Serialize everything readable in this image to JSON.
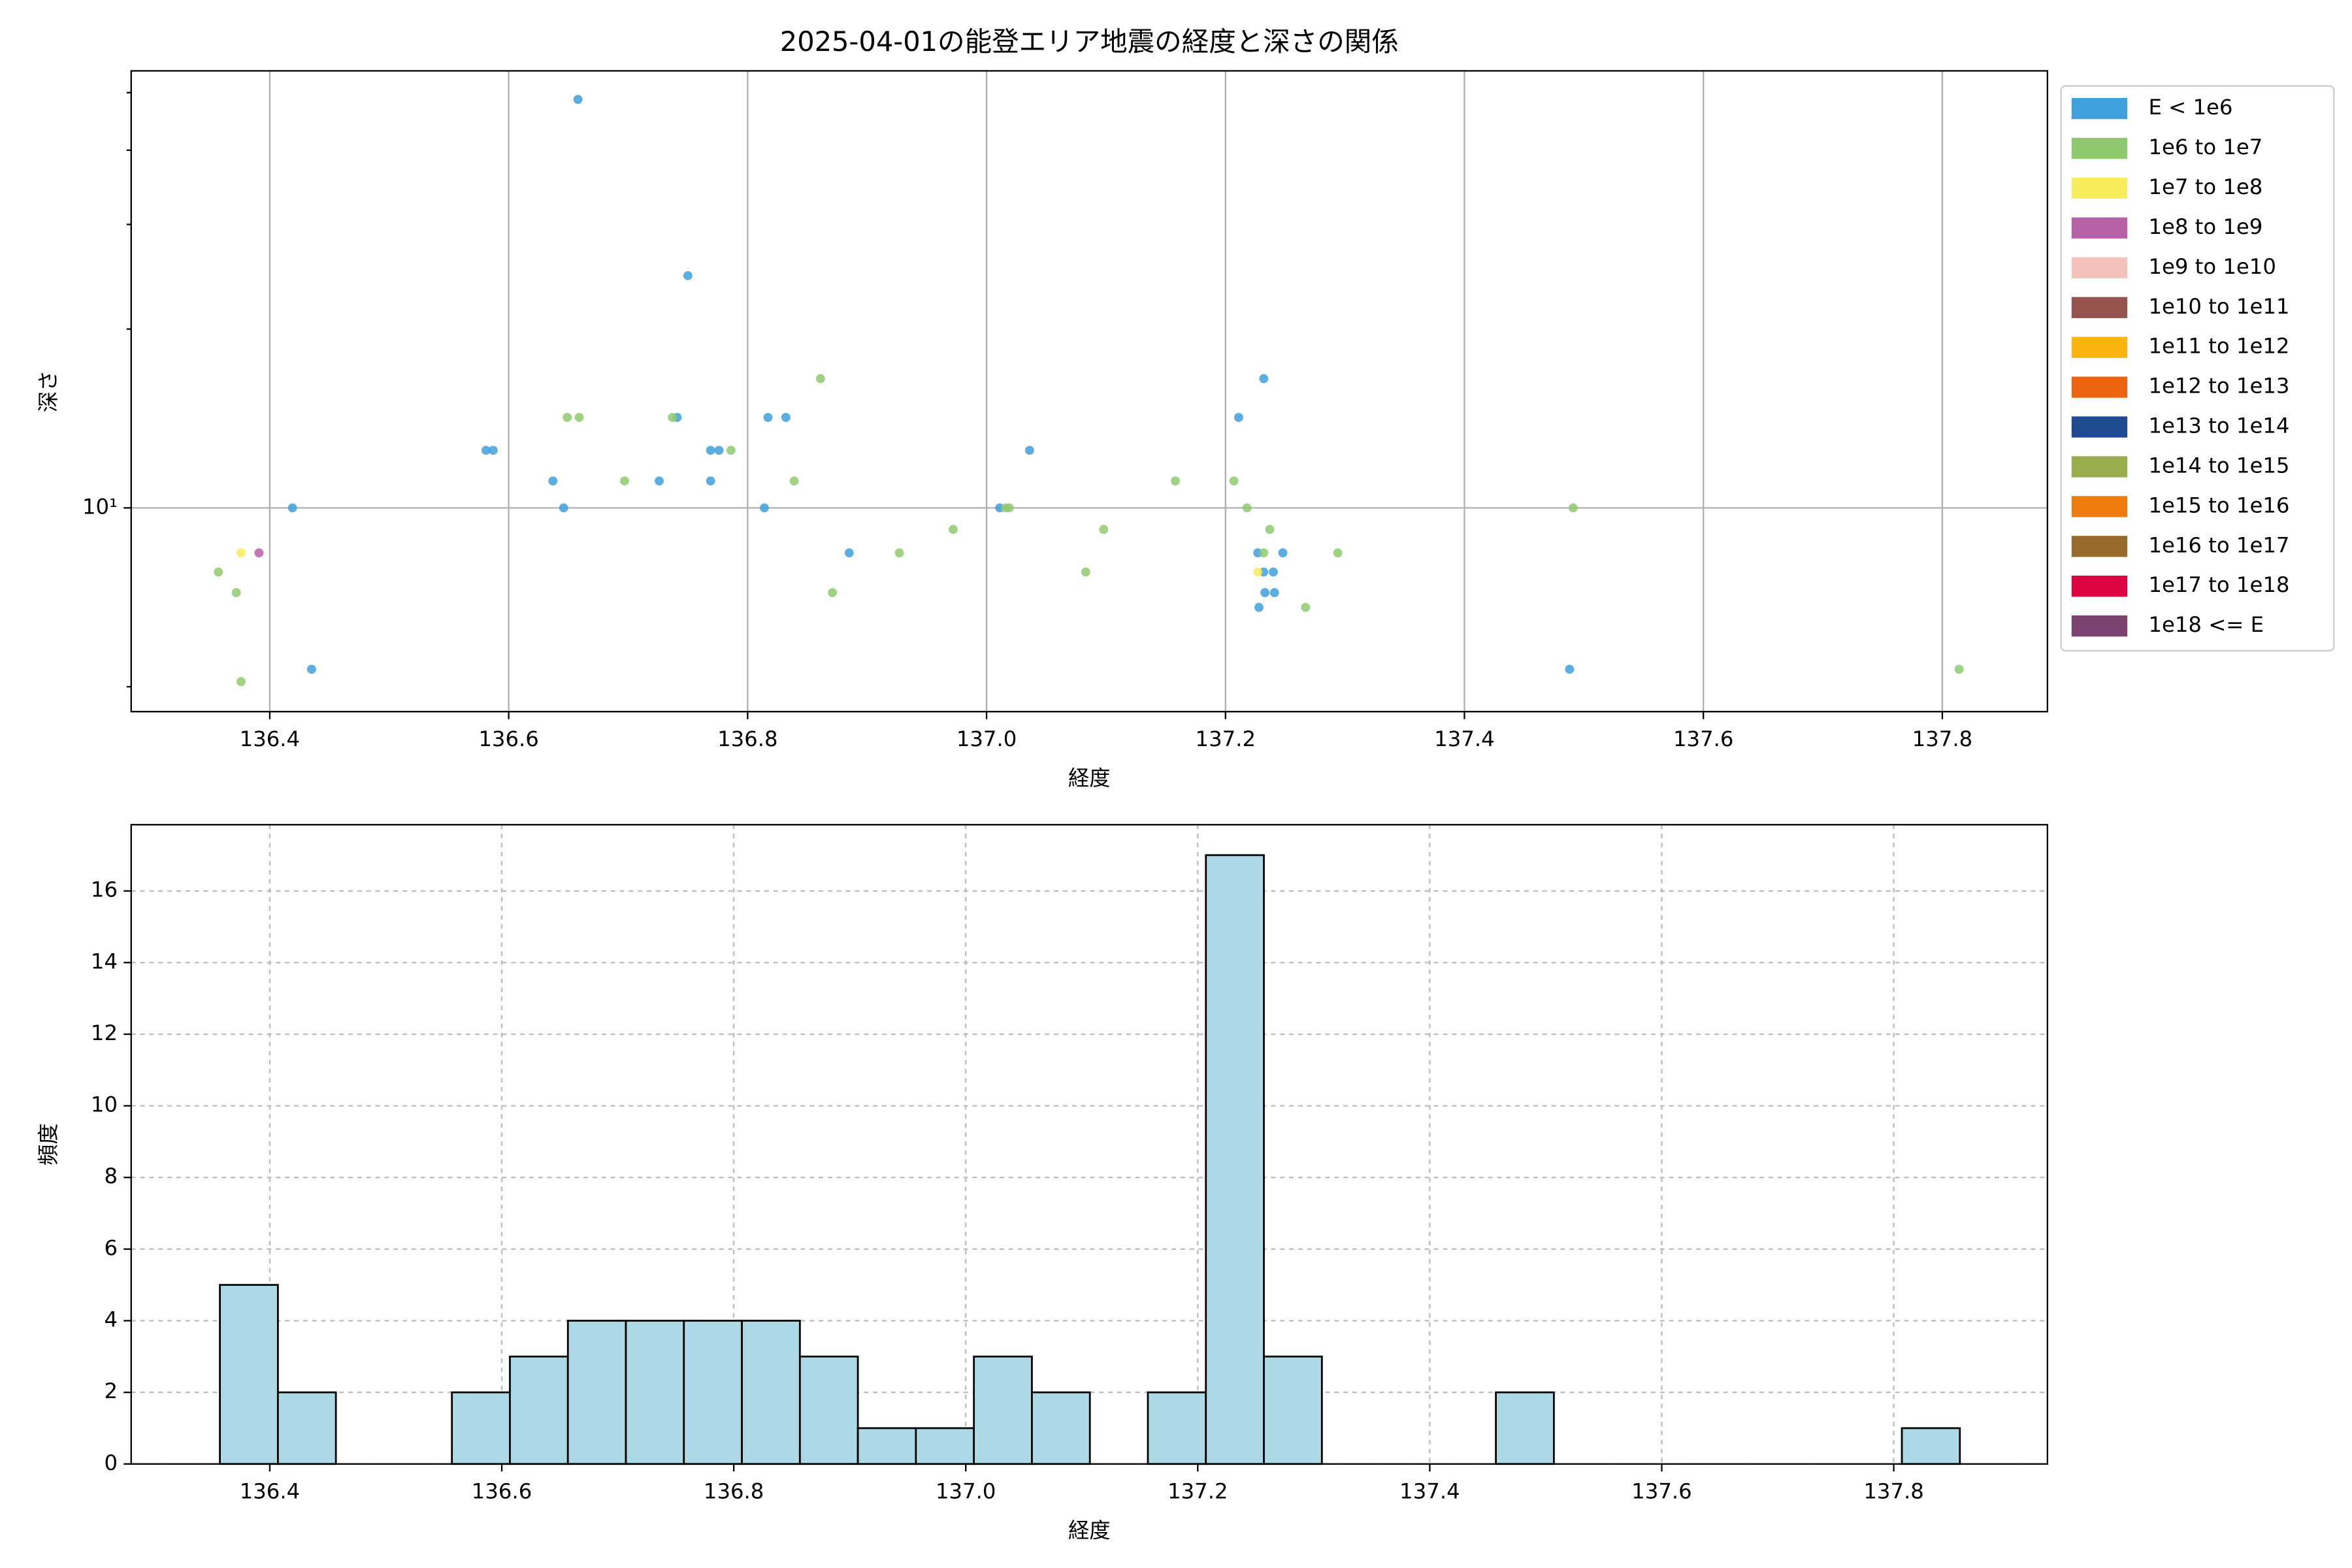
{
  "chart_data": [
    {
      "type": "scatter",
      "title": "2025-04-01の能登エリア地震の経度と深さの関係",
      "x_label": "経度",
      "y_label": "深さ",
      "xlim": [
        136.284,
        137.888
      ],
      "ylim": [
        4.54,
        54.4
      ],
      "y_scale": "log",
      "xticks": [
        136.4,
        136.6,
        136.8,
        {
          "value": 137,
          "label": "137.0"
        },
        137.2,
        137.4,
        137.6,
        137.8
      ],
      "yticks": [
        {
          "value": 10,
          "label": "10¹"
        }
      ],
      "yminorticks": [
        5,
        20,
        30,
        40,
        50
      ],
      "grid": true,
      "grid_style": "solid",
      "legend": "outside right",
      "series": [
        {
          "name": "E < 1e6",
          "color": "#3fa0dc",
          "x": [
            136.658,
            136.75,
            137.232,
            137.211,
            136.817,
            136.832,
            136.741,
            136.581,
            136.587,
            136.769,
            136.776,
            137.036,
            136.637,
            136.726,
            136.769,
            136.419,
            136.646,
            136.814,
            137.011,
            136.885,
            137.227,
            137.248,
            137.232,
            137.24,
            137.233,
            137.241,
            137.228,
            136.435,
            137.488
          ],
          "values": [
            48.7,
            24.6,
            16.5,
            14.2,
            14.2,
            14.2,
            14.2,
            12.5,
            12.5,
            12.5,
            12.5,
            12.5,
            11.1,
            11.1,
            11.1,
            10,
            10,
            10,
            10,
            8.4,
            8.4,
            8.4,
            7.8,
            7.8,
            7.2,
            7.2,
            6.8,
            5.35,
            5.35
          ]
        },
        {
          "name": "1e6 to 1e7",
          "color": "#8fc96f",
          "x": [
            136.861,
            136.649,
            136.659,
            136.737,
            136.786,
            136.697,
            136.839,
            137.158,
            137.207,
            137.016,
            137.019,
            137.218,
            137.491,
            136.972,
            137.098,
            137.237,
            136.927,
            137.294,
            137.232,
            136.357,
            137.083,
            136.372,
            136.871,
            137.267,
            137.814,
            136.376
          ],
          "values": [
            16.5,
            14.2,
            14.2,
            14.2,
            12.5,
            11.1,
            11.1,
            11.1,
            11.1,
            10,
            10,
            10,
            10,
            9.2,
            9.2,
            9.2,
            8.4,
            8.4,
            8.4,
            7.8,
            7.8,
            7.2,
            7.2,
            6.8,
            5.35,
            5.1
          ]
        },
        {
          "name": "1e7 to 1e8",
          "color": "#f9ec5c",
          "x": [
            136.376,
            137.227
          ],
          "values": [
            8.4,
            7.8
          ]
        },
        {
          "name": "1e8 to 1e9",
          "color": "#b762a6",
          "x": [
            136.391
          ],
          "values": [
            8.4
          ]
        },
        {
          "name": "1e9 to 1e10",
          "color": "#f4c2bb",
          "x": [],
          "values": []
        },
        {
          "name": "1e10 to 1e11",
          "color": "#96534d",
          "x": [],
          "values": []
        },
        {
          "name": "1e11 to 1e12",
          "color": "#f9b40e",
          "x": [],
          "values": []
        },
        {
          "name": "1e12 to 1e13",
          "color": "#ed6410",
          "x": [],
          "values": []
        },
        {
          "name": "1e13 to 1e14",
          "color": "#1f4a8f",
          "x": [],
          "values": []
        },
        {
          "name": "1e14 to 1e15",
          "color": "#9aad4c",
          "x": [],
          "values": []
        },
        {
          "name": "1e15 to 1e16",
          "color": "#ee7c0e",
          "x": [],
          "values": []
        },
        {
          "name": "1e16 to 1e17",
          "color": "#966b2c",
          "x": [],
          "values": []
        },
        {
          "name": "1e17 to 1e18",
          "color": "#dd0340",
          "x": [],
          "values": []
        },
        {
          "name": "1e18 <= E",
          "color": "#7c4270",
          "x": [],
          "values": []
        }
      ]
    },
    {
      "type": "histogram",
      "x_label": "経度",
      "y_label": "頻度",
      "color": "#add8e6",
      "edge_color": "#000000",
      "xlim": [
        136.2805,
        137.9325
      ],
      "ylim": [
        0,
        17.85
      ],
      "xticks": [
        136.4,
        136.6,
        136.8,
        {
          "value": 137,
          "label": "137.0"
        },
        137.2,
        137.4,
        137.6,
        137.8
      ],
      "yticks": [
        0,
        2,
        4,
        6,
        8,
        10,
        12,
        14,
        16
      ],
      "grid": true,
      "grid_style": "dashed",
      "bins": [
        136.357,
        136.407,
        136.457,
        136.507,
        136.557,
        136.607,
        136.657,
        136.707,
        136.757,
        136.807,
        136.857,
        136.907,
        136.957,
        137.007,
        137.057,
        137.107,
        137.157,
        137.207,
        137.257,
        137.307,
        137.357,
        137.407,
        137.457,
        137.507,
        137.557,
        137.607,
        137.657,
        137.707,
        137.757,
        137.807,
        137.857
      ],
      "values": [
        5,
        2,
        0,
        0,
        2,
        3,
        4,
        4,
        4,
        4,
        3,
        1,
        1,
        3,
        2,
        0,
        2,
        17,
        3,
        0,
        0,
        0,
        2,
        0,
        0,
        0,
        0,
        0,
        0,
        1
      ]
    }
  ]
}
